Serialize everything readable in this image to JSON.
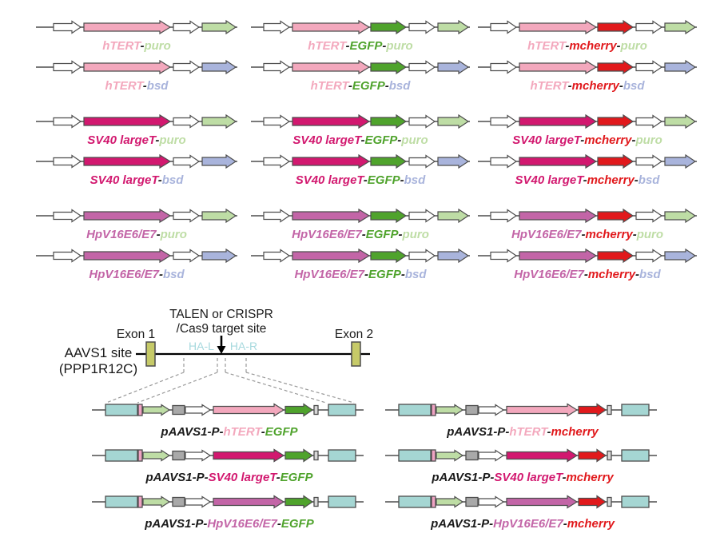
{
  "palette": {
    "pink": "#f3a8bd",
    "magenta": "#d2186f",
    "orchid": "#c365a7",
    "egfp": "#4fa32c",
    "puro": "#bedda5",
    "bsd": "#a9b4dc",
    "mcherry": "#e1191c",
    "white": "#ffffff",
    "cyan": "#a5d6d3",
    "olive": "#c6ca68",
    "gray": "#a9a9a9",
    "thin_pink": "#efa3c3",
    "thin_gray": "#d8d8d8",
    "outline": "#4d4d4d",
    "line": "#4d4d4d",
    "dash": "#999999",
    "black": "#1a1a1a",
    "ha_text": "#a7d9de",
    "genome_line": "#000000"
  },
  "top_constructs": [
    {
      "col": 0,
      "row": 0,
      "gene": "pink",
      "reporter": null,
      "selection": "puro",
      "label": [
        [
          "hTERT",
          "pink"
        ],
        [
          "-",
          "black"
        ],
        [
          "puro",
          "puro"
        ]
      ]
    },
    {
      "col": 0,
      "row": 1,
      "gene": "pink",
      "reporter": null,
      "selection": "bsd",
      "label": [
        [
          "hTERT",
          "pink"
        ],
        [
          "-",
          "black"
        ],
        [
          "bsd",
          "bsd"
        ]
      ]
    },
    {
      "col": 0,
      "row": 2,
      "gene": "magenta",
      "reporter": null,
      "selection": "puro",
      "label": [
        [
          "SV40 largeT",
          "magenta"
        ],
        [
          "-",
          "black"
        ],
        [
          "puro",
          "puro"
        ]
      ]
    },
    {
      "col": 0,
      "row": 3,
      "gene": "magenta",
      "reporter": null,
      "selection": "bsd",
      "label": [
        [
          "SV40 largeT",
          "magenta"
        ],
        [
          "-",
          "black"
        ],
        [
          "bsd",
          "bsd"
        ]
      ]
    },
    {
      "col": 0,
      "row": 4,
      "gene": "orchid",
      "reporter": null,
      "selection": "puro",
      "label": [
        [
          "HpV16E6/E7",
          "orchid"
        ],
        [
          "-",
          "black"
        ],
        [
          "puro",
          "puro"
        ]
      ]
    },
    {
      "col": 0,
      "row": 5,
      "gene": "orchid",
      "reporter": null,
      "selection": "bsd",
      "label": [
        [
          "HpV16E6/E7",
          "orchid"
        ],
        [
          "-",
          "black"
        ],
        [
          "bsd",
          "bsd"
        ]
      ]
    },
    {
      "col": 1,
      "row": 0,
      "gene": "pink",
      "reporter": "egfp",
      "selection": "puro",
      "label": [
        [
          "hTERT",
          "pink"
        ],
        [
          "-",
          "black"
        ],
        [
          "EGFP",
          "egfp"
        ],
        [
          "-",
          "black"
        ],
        [
          "puro",
          "puro"
        ]
      ]
    },
    {
      "col": 1,
      "row": 1,
      "gene": "pink",
      "reporter": "egfp",
      "selection": "bsd",
      "label": [
        [
          "hTERT",
          "pink"
        ],
        [
          "-",
          "black"
        ],
        [
          "EGFP",
          "egfp"
        ],
        [
          "-",
          "black"
        ],
        [
          "bsd",
          "bsd"
        ]
      ]
    },
    {
      "col": 1,
      "row": 2,
      "gene": "magenta",
      "reporter": "egfp",
      "selection": "puro",
      "label": [
        [
          "SV40 largeT",
          "magenta"
        ],
        [
          "-",
          "black"
        ],
        [
          "EGFP",
          "egfp"
        ],
        [
          "-",
          "black"
        ],
        [
          "puro",
          "puro"
        ]
      ]
    },
    {
      "col": 1,
      "row": 3,
      "gene": "magenta",
      "reporter": "egfp",
      "selection": "bsd",
      "label": [
        [
          "SV40 largeT",
          "magenta"
        ],
        [
          "-",
          "black"
        ],
        [
          "EGFP",
          "egfp"
        ],
        [
          "-",
          "black"
        ],
        [
          "bsd",
          "bsd"
        ]
      ]
    },
    {
      "col": 1,
      "row": 4,
      "gene": "orchid",
      "reporter": "egfp",
      "selection": "puro",
      "label": [
        [
          "HpV16E6/E7",
          "orchid"
        ],
        [
          "-",
          "black"
        ],
        [
          "EGFP",
          "egfp"
        ],
        [
          "-",
          "black"
        ],
        [
          "puro",
          "puro"
        ]
      ]
    },
    {
      "col": 1,
      "row": 5,
      "gene": "orchid",
      "reporter": "egfp",
      "selection": "bsd",
      "label": [
        [
          "HpV16E6/E7",
          "orchid"
        ],
        [
          "-",
          "black"
        ],
        [
          "EGFP",
          "egfp"
        ],
        [
          "-",
          "black"
        ],
        [
          "bsd",
          "bsd"
        ]
      ]
    },
    {
      "col": 2,
      "row": 0,
      "gene": "pink",
      "reporter": "mcherry",
      "selection": "puro",
      "label": [
        [
          "hTERT",
          "pink"
        ],
        [
          "-",
          "black"
        ],
        [
          "mcherry",
          "mcherry"
        ],
        [
          "-",
          "black"
        ],
        [
          "puro",
          "puro"
        ]
      ]
    },
    {
      "col": 2,
      "row": 1,
      "gene": "pink",
      "reporter": "mcherry",
      "selection": "bsd",
      "label": [
        [
          "hTERT",
          "pink"
        ],
        [
          "-",
          "black"
        ],
        [
          "mcherry",
          "mcherry"
        ],
        [
          "-",
          "black"
        ],
        [
          "bsd",
          "bsd"
        ]
      ]
    },
    {
      "col": 2,
      "row": 2,
      "gene": "magenta",
      "reporter": "mcherry",
      "selection": "puro",
      "label": [
        [
          "SV40 largeT",
          "magenta"
        ],
        [
          "-",
          "black"
        ],
        [
          "mcherry",
          "mcherry"
        ],
        [
          "-",
          "black"
        ],
        [
          "puro",
          "puro"
        ]
      ]
    },
    {
      "col": 2,
      "row": 3,
      "gene": "magenta",
      "reporter": "mcherry",
      "selection": "bsd",
      "label": [
        [
          "SV40 largeT",
          "magenta"
        ],
        [
          "-",
          "black"
        ],
        [
          "mcherry",
          "mcherry"
        ],
        [
          "-",
          "black"
        ],
        [
          "bsd",
          "bsd"
        ]
      ]
    },
    {
      "col": 2,
      "row": 4,
      "gene": "orchid",
      "reporter": "mcherry",
      "selection": "puro",
      "label": [
        [
          "HpV16E6/E7",
          "orchid"
        ],
        [
          "-",
          "black"
        ],
        [
          "mcherry",
          "mcherry"
        ],
        [
          "-",
          "black"
        ],
        [
          "puro",
          "puro"
        ]
      ]
    },
    {
      "col": 2,
      "row": 5,
      "gene": "orchid",
      "reporter": "mcherry",
      "selection": "bsd",
      "label": [
        [
          "HpV16E6/E7",
          "orchid"
        ],
        [
          "-",
          "black"
        ],
        [
          "mcherry",
          "mcherry"
        ],
        [
          "-",
          "black"
        ],
        [
          "bsd",
          "bsd"
        ]
      ]
    }
  ],
  "genome_map": {
    "site_label": [
      "AAVS1 site",
      "(PPP1R12C)"
    ],
    "exon1_label": "Exon 1",
    "exon2_label": "Exon 2",
    "target_label": [
      "TALEN or CRISPR",
      "/Cas9 target site"
    ],
    "ha_left_label": "HA-L",
    "ha_right_label": "HA-R"
  },
  "bottom_constructs": [
    {
      "col": 0,
      "row": 0,
      "gene": "pink",
      "reporter": "egfp",
      "label": [
        [
          "pAAVS1-P-",
          "black"
        ],
        [
          "hTERT",
          "pink"
        ],
        [
          "-",
          "black"
        ],
        [
          "EGFP",
          "egfp"
        ]
      ]
    },
    {
      "col": 0,
      "row": 1,
      "gene": "magenta",
      "reporter": "egfp",
      "label": [
        [
          "pAAVS1-P-",
          "black"
        ],
        [
          "SV40 largeT",
          "magenta"
        ],
        [
          "-",
          "black"
        ],
        [
          "EGFP",
          "egfp"
        ]
      ]
    },
    {
      "col": 0,
      "row": 2,
      "gene": "orchid",
      "reporter": "egfp",
      "label": [
        [
          "pAAVS1-P-",
          "black"
        ],
        [
          "HpV16E6/E7",
          "orchid"
        ],
        [
          "-",
          "black"
        ],
        [
          "EGFP",
          "egfp"
        ]
      ]
    },
    {
      "col": 1,
      "row": 0,
      "gene": "pink",
      "reporter": "mcherry",
      "label": [
        [
          "pAAVS1-P-",
          "black"
        ],
        [
          "hTERT",
          "pink"
        ],
        [
          "-",
          "black"
        ],
        [
          "mcherry",
          "mcherry"
        ]
      ]
    },
    {
      "col": 1,
      "row": 1,
      "gene": "magenta",
      "reporter": "mcherry",
      "label": [
        [
          "pAAVS1-P-",
          "black"
        ],
        [
          "SV40 largeT",
          "magenta"
        ],
        [
          "-",
          "black"
        ],
        [
          "mcherry",
          "mcherry"
        ]
      ]
    },
    {
      "col": 1,
      "row": 2,
      "gene": "orchid",
      "reporter": "mcherry",
      "label": [
        [
          "pAAVS1-P-",
          "black"
        ],
        [
          "HpV16E6/E7",
          "orchid"
        ],
        [
          "-",
          "black"
        ],
        [
          "mcherry",
          "mcherry"
        ]
      ]
    }
  ]
}
